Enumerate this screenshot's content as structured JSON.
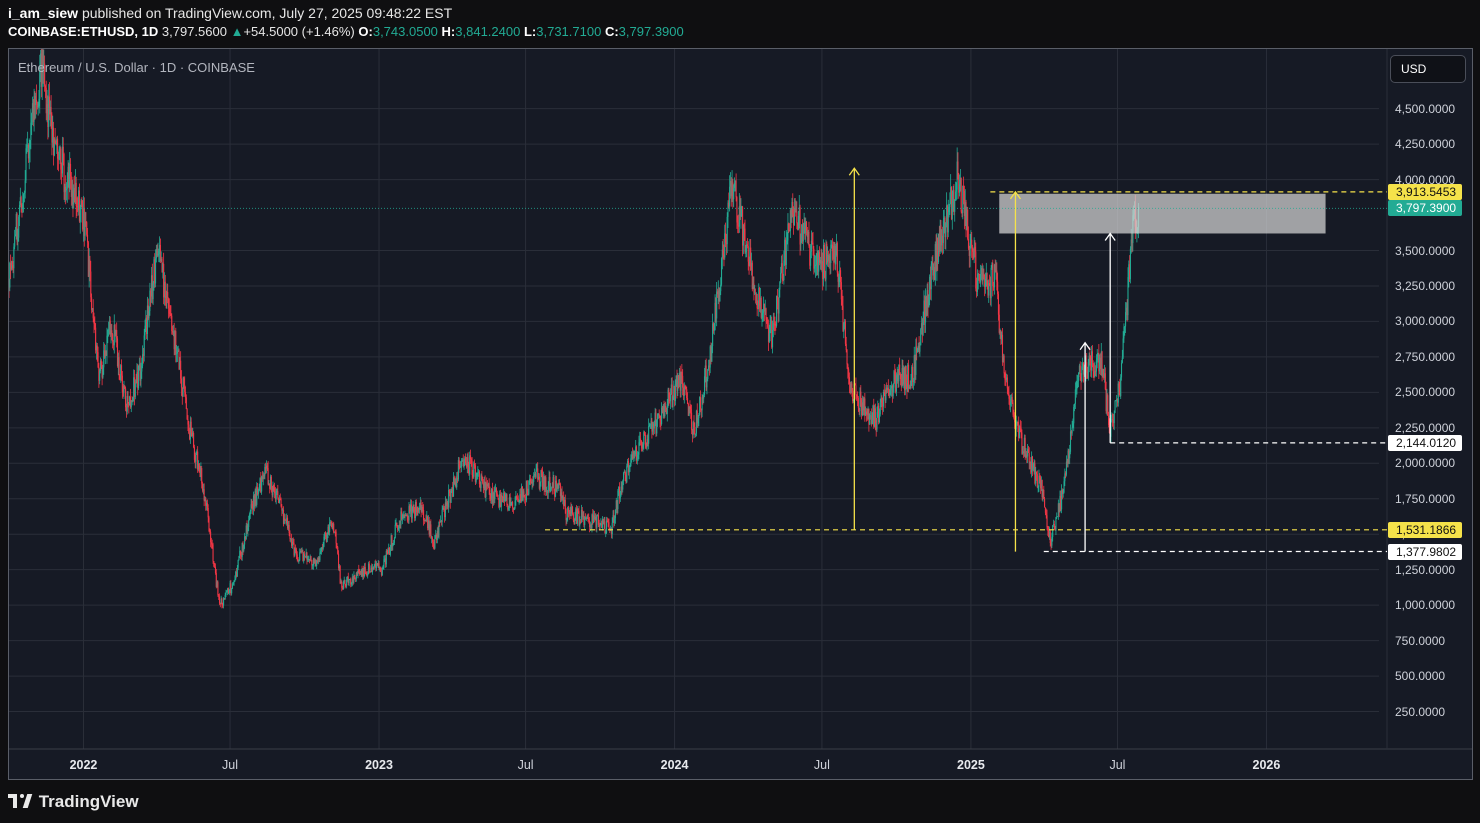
{
  "header": {
    "author": "i_am_siew",
    "published_text": "published on TradingView.com, July 27, 2025 09:48:22 EST",
    "symbol": "COINBASE:ETHUSD, 1D",
    "last": "3,797.5600",
    "change": "+54.5000 (+1.46%)",
    "open_label": "O:",
    "open": "3,743.0500",
    "high_label": "H:",
    "high": "3,841.2400",
    "low_label": "L:",
    "low": "3,731.7100",
    "close_label": "C:",
    "close": "3,797.3900"
  },
  "pane": {
    "title": "Ethereum / U.S. Dollar · 1D · COINBASE",
    "currency_button": "USD"
  },
  "footer": {
    "brand": "TradingView"
  },
  "colors": {
    "background": "#161a25",
    "up": "#22ab94",
    "down": "#f23645",
    "yellow": "#f5e24a",
    "white": "#ffffff",
    "zone": "#d6d6d6",
    "current_price": "#22ab94"
  },
  "chart_data": {
    "type": "candlestick",
    "title": "Ethereum / U.S. Dollar · 1D · COINBASE",
    "xlabel": "",
    "ylabel": "",
    "ylim": [
      0,
      4850
    ],
    "y_ticks": [
      "250.0000",
      "500.0000",
      "750.0000",
      "1,000.0000",
      "1,250.0000",
      "1,500.0000",
      "1,750.0000",
      "2,000.0000",
      "2,250.0000",
      "2,500.0000",
      "2,750.0000",
      "3,000.0000",
      "3,250.0000",
      "3,500.0000",
      "4,000.0000",
      "4,250.0000",
      "4,500.0000"
    ],
    "y_tick_values": [
      250,
      500,
      750,
      1000,
      1250,
      1500,
      1750,
      2000,
      2250,
      2500,
      2750,
      3000,
      3250,
      3500,
      4000,
      4250,
      4500
    ],
    "x_ticks": [
      {
        "label": "2022",
        "date": "2022-01-01",
        "bold": true
      },
      {
        "label": "Jul",
        "date": "2022-07-01",
        "bold": false
      },
      {
        "label": "2023",
        "date": "2023-01-01",
        "bold": true
      },
      {
        "label": "Jul",
        "date": "2023-07-01",
        "bold": false
      },
      {
        "label": "2024",
        "date": "2024-01-01",
        "bold": true
      },
      {
        "label": "Jul",
        "date": "2024-07-01",
        "bold": false
      },
      {
        "label": "2025",
        "date": "2025-01-01",
        "bold": true
      },
      {
        "label": "Jul",
        "date": "2025-07-01",
        "bold": false
      },
      {
        "label": "2026",
        "date": "2026-01-01",
        "bold": true
      }
    ],
    "xlim": [
      "2021-10-01",
      "2026-05-20"
    ],
    "grid": true,
    "price_path": [
      [
        "2021-10-01",
        3300
      ],
      [
        "2021-10-20",
        4000
      ],
      [
        "2021-11-10",
        4800
      ],
      [
        "2021-11-25",
        4300
      ],
      [
        "2021-12-05",
        4100
      ],
      [
        "2021-12-20",
        3900
      ],
      [
        "2022-01-01",
        3750
      ],
      [
        "2022-01-20",
        2600
      ],
      [
        "2022-02-05",
        3000
      ],
      [
        "2022-02-24",
        2400
      ],
      [
        "2022-03-10",
        2600
      ],
      [
        "2022-04-02",
        3500
      ],
      [
        "2022-04-20",
        3000
      ],
      [
        "2022-05-10",
        2300
      ],
      [
        "2022-05-30",
        1800
      ],
      [
        "2022-06-18",
        1000
      ],
      [
        "2022-07-05",
        1150
      ],
      [
        "2022-07-28",
        1700
      ],
      [
        "2022-08-14",
        1950
      ],
      [
        "2022-09-07",
        1600
      ],
      [
        "2022-09-20",
        1350
      ],
      [
        "2022-10-15",
        1300
      ],
      [
        "2022-11-05",
        1600
      ],
      [
        "2022-11-15",
        1150
      ],
      [
        "2022-12-15",
        1250
      ],
      [
        "2023-01-05",
        1250
      ],
      [
        "2023-01-25",
        1600
      ],
      [
        "2023-02-20",
        1700
      ],
      [
        "2023-03-10",
        1450
      ],
      [
        "2023-04-15",
        2050
      ],
      [
        "2023-05-15",
        1800
      ],
      [
        "2023-06-15",
        1700
      ],
      [
        "2023-07-15",
        1900
      ],
      [
        "2023-08-15",
        1800
      ],
      [
        "2023-08-20",
        1650
      ],
      [
        "2023-09-15",
        1600
      ],
      [
        "2023-10-15",
        1550
      ],
      [
        "2023-10-25",
        1800
      ],
      [
        "2023-11-10",
        2050
      ],
      [
        "2023-12-10",
        2300
      ],
      [
        "2024-01-10",
        2600
      ],
      [
        "2024-01-25",
        2200
      ],
      [
        "2024-02-15",
        2800
      ],
      [
        "2024-03-12",
        4000
      ],
      [
        "2024-04-15",
        3100
      ],
      [
        "2024-05-01",
        2900
      ],
      [
        "2024-05-25",
        3800
      ],
      [
        "2024-06-25",
        3400
      ],
      [
        "2024-07-20",
        3450
      ],
      [
        "2024-08-05",
        2500
      ],
      [
        "2024-09-05",
        2300
      ],
      [
        "2024-09-30",
        2600
      ],
      [
        "2024-10-20",
        2600
      ],
      [
        "2024-11-12",
        3300
      ],
      [
        "2024-12-16",
        4000
      ],
      [
        "2025-01-10",
        3250
      ],
      [
        "2025-01-31",
        3300
      ],
      [
        "2025-02-10",
        2700
      ],
      [
        "2025-03-01",
        2200
      ],
      [
        "2025-03-30",
        1800
      ],
      [
        "2025-04-09",
        1450
      ],
      [
        "2025-04-25",
        1800
      ],
      [
        "2025-05-13",
        2600
      ],
      [
        "2025-06-10",
        2750
      ],
      [
        "2025-06-22",
        2250
      ],
      [
        "2025-07-05",
        2550
      ],
      [
        "2025-07-20",
        3700
      ],
      [
        "2025-07-27",
        3797
      ]
    ],
    "last_close": 3797.39,
    "annotations": {
      "resistance_zone": {
        "from": "2025-02-05",
        "to": "2026-03-15",
        "low": 3620,
        "high": 3900
      },
      "horizontal_levels": [
        {
          "value": 3913.5453,
          "label": "3,913.5453",
          "from": "2025-01-25",
          "style": "yellow-dashed"
        },
        {
          "value": 2144.012,
          "label": "2,144.0120",
          "from": "2025-06-22",
          "style": "white-dashed"
        },
        {
          "value": 1531.1866,
          "label": "1,531.1866",
          "from": "2023-07-25",
          "style": "yellow-dashed"
        },
        {
          "value": 1377.9802,
          "label": "1,377.9802",
          "from": "2025-04-01",
          "style": "white-dashed"
        }
      ],
      "arrows": [
        {
          "date": "2024-08-10",
          "from": 1531,
          "to": 4080,
          "color": "yellow"
        },
        {
          "date": "2025-02-25",
          "from": 1377,
          "to": 3913,
          "color": "yellow"
        },
        {
          "date": "2025-05-22",
          "from": 1377,
          "to": 2850,
          "color": "white"
        },
        {
          "date": "2025-06-22",
          "from": 2144,
          "to": 3620,
          "color": "white"
        }
      ]
    }
  }
}
